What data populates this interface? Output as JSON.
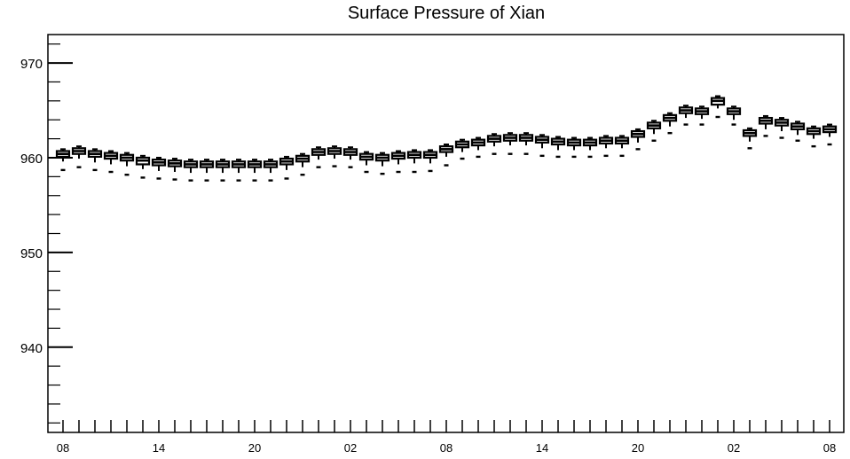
{
  "chart_data": {
    "type": "box",
    "title": "Surface Pressure of Xian",
    "xlabel": "",
    "ylabel": "",
    "ylim": [
      931,
      973
    ],
    "yticks": [
      940,
      950,
      960,
      970
    ],
    "x_tick_labels": [
      "08",
      "14",
      "20",
      "02",
      "08",
      "14",
      "20",
      "02",
      "08"
    ],
    "grid": false,
    "series": [
      {
        "median": [
          960.4,
          960.7,
          960.4,
          960.2,
          960.0,
          959.7,
          959.5,
          959.4,
          959.3,
          959.3,
          959.3,
          959.3,
          959.3,
          959.3,
          959.6,
          959.9,
          960.6,
          960.7,
          960.6,
          960.1,
          960.0,
          960.2,
          960.3,
          960.3,
          960.9,
          961.4,
          961.6,
          962.0,
          962.1,
          962.1,
          961.9,
          961.7,
          961.6,
          961.6,
          961.8,
          961.8,
          962.5,
          963.4,
          964.2,
          965.0,
          964.9,
          966.0,
          964.9,
          962.6,
          963.9,
          963.7,
          963.3,
          962.8,
          963.0
        ],
        "q1": [
          960.1,
          960.4,
          960.1,
          959.9,
          959.7,
          959.3,
          959.2,
          959.1,
          959.0,
          959.0,
          959.0,
          959.0,
          959.0,
          959.0,
          959.3,
          959.6,
          960.3,
          960.4,
          960.3,
          959.8,
          959.7,
          959.9,
          960.0,
          960.0,
          960.6,
          961.1,
          961.3,
          961.7,
          961.8,
          961.8,
          961.6,
          961.4,
          961.3,
          961.3,
          961.5,
          961.5,
          962.2,
          963.1,
          963.9,
          964.7,
          964.6,
          965.6,
          964.6,
          962.3,
          963.6,
          963.4,
          963.0,
          962.5,
          962.7
        ],
        "q3": [
          960.7,
          961.0,
          960.7,
          960.5,
          960.3,
          960.0,
          959.8,
          959.7,
          959.6,
          959.6,
          959.6,
          959.6,
          959.6,
          959.6,
          959.9,
          960.2,
          960.9,
          961.0,
          960.9,
          960.4,
          960.3,
          960.5,
          960.6,
          960.6,
          961.2,
          961.7,
          961.9,
          962.3,
          962.4,
          962.4,
          962.2,
          962.0,
          961.9,
          961.9,
          962.1,
          962.1,
          962.8,
          963.7,
          964.5,
          965.3,
          965.2,
          966.3,
          965.2,
          962.9,
          964.2,
          964.0,
          963.6,
          963.1,
          963.3
        ],
        "whisker_low": [
          959.6,
          959.9,
          959.5,
          959.3,
          959.1,
          958.8,
          958.6,
          958.5,
          958.4,
          958.4,
          958.4,
          958.4,
          958.4,
          958.4,
          958.7,
          959.0,
          959.8,
          959.9,
          959.8,
          959.2,
          959.1,
          959.3,
          959.4,
          959.4,
          960.1,
          960.6,
          960.8,
          961.2,
          961.3,
          961.3,
          961.0,
          960.8,
          960.8,
          960.8,
          961.0,
          961.0,
          961.6,
          962.5,
          963.3,
          964.2,
          964.1,
          965.2,
          964.0,
          961.7,
          963.0,
          962.8,
          962.4,
          962.0,
          962.2
        ],
        "whisker_high": [
          960.9,
          961.2,
          960.9,
          960.7,
          960.5,
          960.2,
          960.0,
          959.9,
          959.8,
          959.8,
          959.8,
          959.8,
          959.8,
          959.8,
          960.1,
          960.4,
          961.1,
          961.2,
          961.1,
          960.6,
          960.5,
          960.7,
          960.8,
          960.8,
          961.4,
          961.9,
          962.1,
          962.5,
          962.6,
          962.6,
          962.4,
          962.2,
          962.1,
          962.1,
          962.3,
          962.3,
          963.0,
          963.9,
          964.7,
          965.5,
          965.4,
          966.5,
          965.4,
          963.1,
          964.4,
          964.2,
          963.8,
          963.3,
          963.5
        ],
        "outlier_low": [
          958.7,
          959.0,
          958.7,
          958.5,
          958.2,
          957.9,
          957.8,
          957.7,
          957.6,
          957.6,
          957.6,
          957.6,
          957.6,
          957.6,
          957.8,
          958.2,
          959.0,
          959.1,
          959.0,
          958.5,
          958.3,
          958.5,
          958.5,
          958.6,
          959.2,
          959.9,
          960.1,
          960.4,
          960.4,
          960.4,
          960.2,
          960.1,
          960.1,
          960.1,
          960.2,
          960.2,
          960.9,
          961.8,
          962.6,
          963.5,
          963.5,
          964.3,
          963.5,
          961.0,
          962.3,
          962.1,
          961.8,
          961.2,
          961.4
        ]
      }
    ]
  }
}
